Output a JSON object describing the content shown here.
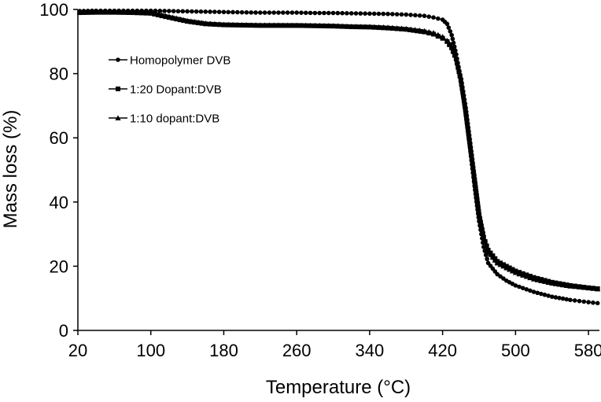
{
  "chart_data": {
    "type": "line",
    "title": "",
    "xlabel": "Temperature (°C)",
    "ylabel": "Mass loss (%)",
    "xlim": [
      20,
      592
    ],
    "ylim": [
      0,
      100
    ],
    "xticks": [
      20,
      100,
      180,
      260,
      340,
      420,
      500,
      580
    ],
    "yticks": [
      0,
      20,
      40,
      60,
      80,
      100
    ],
    "grid": false,
    "legend_position": "upper-left",
    "series": [
      {
        "name": "Homopolymer DVB",
        "marker": "circle",
        "x": [
          22,
          40,
          60,
          80,
          100,
          120,
          140,
          160,
          180,
          200,
          220,
          240,
          260,
          280,
          300,
          320,
          340,
          360,
          380,
          400,
          410,
          420,
          425,
          430,
          435,
          440,
          445,
          450,
          455,
          460,
          465,
          470,
          480,
          490,
          500,
          520,
          540,
          560,
          580,
          590
        ],
        "y": [
          99.5,
          99.6,
          99.6,
          99.6,
          99.6,
          99.5,
          99.4,
          99.3,
          99.2,
          99.1,
          99.0,
          99.0,
          99.0,
          98.9,
          98.9,
          98.8,
          98.7,
          98.6,
          98.4,
          98.0,
          97.5,
          96.8,
          95.5,
          92.0,
          86.0,
          78.0,
          68.0,
          57.0,
          45.0,
          34.0,
          26.0,
          21.0,
          17.5,
          15.5,
          14.0,
          12.0,
          10.5,
          9.5,
          8.8,
          8.5
        ]
      },
      {
        "name": "1:20 Dopant:DVB",
        "marker": "square",
        "x": [
          22,
          40,
          60,
          80,
          100,
          120,
          140,
          160,
          180,
          200,
          220,
          240,
          260,
          280,
          300,
          320,
          340,
          360,
          380,
          400,
          410,
          420,
          425,
          430,
          435,
          440,
          445,
          450,
          455,
          460,
          465,
          470,
          480,
          490,
          500,
          520,
          540,
          560,
          580,
          590
        ],
        "y": [
          99.0,
          99.1,
          99.1,
          99.0,
          98.8,
          97.5,
          96.3,
          95.5,
          95.2,
          95.1,
          95.0,
          95.0,
          95.0,
          94.9,
          94.8,
          94.6,
          94.5,
          94.2,
          93.8,
          93.0,
          92.3,
          91.0,
          90.0,
          88.0,
          84.5,
          78.0,
          69.0,
          58.0,
          47.0,
          36.0,
          29.0,
          25.0,
          21.5,
          20.0,
          18.5,
          16.5,
          15.0,
          14.0,
          13.3,
          13.0
        ]
      },
      {
        "name": "1:10 dopant:DVB",
        "marker": "triangle",
        "x": [
          22,
          40,
          60,
          80,
          100,
          120,
          140,
          160,
          180,
          200,
          220,
          240,
          260,
          280,
          300,
          320,
          340,
          360,
          380,
          400,
          410,
          420,
          425,
          430,
          435,
          440,
          445,
          450,
          455,
          460,
          465,
          470,
          480,
          490,
          500,
          520,
          540,
          560,
          580,
          590
        ],
        "y": [
          99.2,
          99.3,
          99.3,
          99.2,
          99.0,
          97.8,
          96.5,
          95.7,
          95.3,
          95.2,
          95.1,
          95.1,
          95.0,
          95.0,
          94.9,
          94.7,
          94.6,
          94.4,
          94.0,
          93.3,
          92.7,
          91.5,
          90.3,
          88.5,
          85.0,
          79.0,
          70.0,
          59.0,
          47.5,
          36.5,
          29.0,
          24.5,
          21.0,
          19.5,
          18.0,
          16.0,
          14.7,
          13.8,
          13.2,
          12.9
        ]
      }
    ]
  }
}
